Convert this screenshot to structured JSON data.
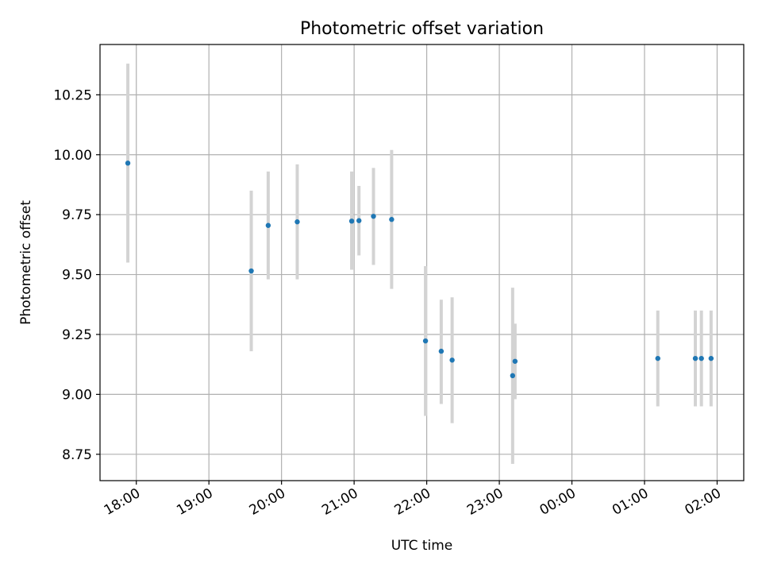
{
  "chart_data": {
    "type": "scatter",
    "title": "Photometric offset variation",
    "xlabel": "UTC time",
    "ylabel": "Photometric offset",
    "x_ticks": [
      "18:00",
      "19:00",
      "20:00",
      "21:00",
      "22:00",
      "23:00",
      "00:00",
      "01:00",
      "02:00"
    ],
    "y_ticks": [
      "8.75",
      "9.00",
      "9.25",
      "9.50",
      "9.75",
      "10.00",
      "10.25"
    ],
    "xlim": [
      "17:30",
      "02:22"
    ],
    "ylim": [
      8.64,
      10.46
    ],
    "grid": true,
    "legend": "none",
    "colors": {
      "point": "#1f77b4",
      "errorbar": "#d3d3d3",
      "grid": "#b0b0b0"
    },
    "series": [
      {
        "points": [
          {
            "x": "17:53",
            "y": 9.965,
            "ymin": 9.55,
            "ymax": 10.38
          },
          {
            "x": "19:35",
            "y": 9.515,
            "ymin": 9.18,
            "ymax": 9.85
          },
          {
            "x": "19:49",
            "y": 9.705,
            "ymin": 9.48,
            "ymax": 9.93
          },
          {
            "x": "20:13",
            "y": 9.72,
            "ymin": 9.48,
            "ymax": 9.96
          },
          {
            "x": "20:58",
            "y": 9.723,
            "ymin": 9.52,
            "ymax": 9.93
          },
          {
            "x": "21:04",
            "y": 9.725,
            "ymin": 9.58,
            "ymax": 9.87
          },
          {
            "x": "21:16",
            "y": 9.743,
            "ymin": 9.54,
            "ymax": 9.945
          },
          {
            "x": "21:31",
            "y": 9.73,
            "ymin": 9.44,
            "ymax": 10.02
          },
          {
            "x": "21:59",
            "y": 9.223,
            "ymin": 8.91,
            "ymax": 9.535
          },
          {
            "x": "22:12",
            "y": 9.18,
            "ymin": 8.96,
            "ymax": 9.395
          },
          {
            "x": "22:21",
            "y": 9.143,
            "ymin": 8.88,
            "ymax": 9.405
          },
          {
            "x": "23:11",
            "y": 9.078,
            "ymin": 8.71,
            "ymax": 9.445
          },
          {
            "x": "23:13",
            "y": 9.138,
            "ymin": 8.98,
            "ymax": 9.295
          },
          {
            "x": "01:11",
            "y": 9.15,
            "ymin": 8.95,
            "ymax": 9.35
          },
          {
            "x": "01:42",
            "y": 9.15,
            "ymin": 8.95,
            "ymax": 9.35
          },
          {
            "x": "01:47",
            "y": 9.15,
            "ymin": 8.95,
            "ymax": 9.35
          },
          {
            "x": "01:55",
            "y": 9.15,
            "ymin": 8.95,
            "ymax": 9.35
          }
        ]
      }
    ]
  }
}
